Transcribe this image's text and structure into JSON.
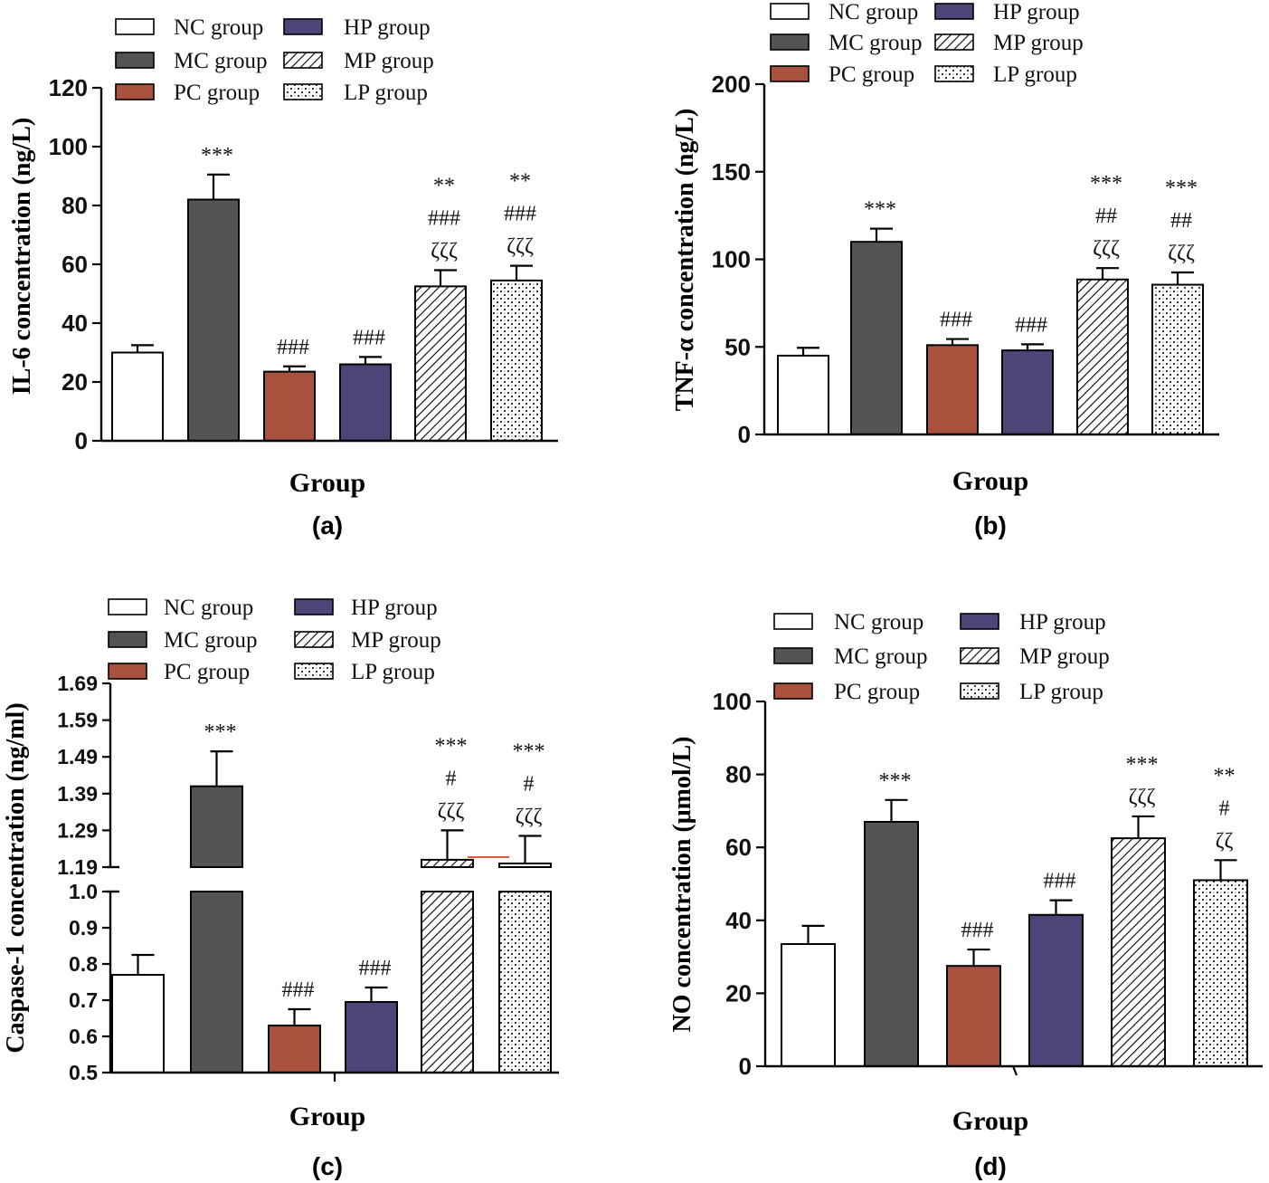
{
  "colors": {
    "NC": "#ffffff",
    "MC": "#545454",
    "PC": "#a8513c",
    "HP": "#4b4677",
    "MP": "#ffffff",
    "LP": "#ffffff",
    "axis": "#000000",
    "break_mark": "#e0573a"
  },
  "legend_labels": [
    "NC group",
    "MC group",
    "PC group",
    "HP group",
    "MP group",
    "LP group"
  ],
  "chart_data": [
    {
      "id": "a",
      "type": "bar",
      "panel_label": "(a)",
      "xlabel": "Group",
      "ylabel": "IL-6 concentration (ng/L)",
      "ylim": [
        0,
        120
      ],
      "yticks": [
        "0",
        "20",
        "40",
        "60",
        "80",
        "100",
        "120"
      ],
      "categories": [
        "NC group",
        "MC group",
        "PC group",
        "HP group",
        "MP group",
        "LP group"
      ],
      "values": [
        30,
        82,
        23.5,
        26,
        52.5,
        54.5
      ],
      "errors": [
        2.5,
        8.5,
        1.8,
        2.5,
        5.5,
        5
      ],
      "annotations": [
        [],
        [
          "***"
        ],
        [
          "###"
        ],
        [
          "###"
        ],
        [
          "**",
          "###",
          "ζζζ"
        ],
        [
          "**",
          "###",
          "ζζζ"
        ]
      ]
    },
    {
      "id": "b",
      "type": "bar",
      "panel_label": "(b)",
      "xlabel": "Group",
      "ylabel": "TNF-α concentration (ng/L)",
      "ylim": [
        0,
        200
      ],
      "yticks": [
        "0",
        "50",
        "100",
        "150",
        "200"
      ],
      "categories": [
        "NC group",
        "MC group",
        "PC group",
        "HP group",
        "MP group",
        "LP group"
      ],
      "values": [
        45,
        110,
        51,
        48,
        88.5,
        85.5
      ],
      "errors": [
        4.5,
        7.5,
        3.5,
        3.5,
        6.5,
        7
      ],
      "annotations": [
        [],
        [
          "***"
        ],
        [
          "###"
        ],
        [
          "###"
        ],
        [
          "***",
          "##",
          "ζζζ"
        ],
        [
          "***",
          "##",
          "ζζζ"
        ]
      ]
    },
    {
      "id": "c",
      "type": "bar",
      "panel_label": "(c)",
      "xlabel": "Group",
      "ylabel": "Caspase-1 concentration (ng/ml)",
      "ylim": [
        0.5,
        1.69
      ],
      "yticks_lower": [
        "0.5",
        "0.6",
        "0.7",
        "0.8",
        "0.9",
        "1.0"
      ],
      "yticks_upper": [
        "1.19",
        "1.29",
        "1.39",
        "1.49",
        "1.59",
        "1.69"
      ],
      "axis_break": [
        1.0,
        1.19
      ],
      "categories": [
        "NC group",
        "MC group",
        "PC group",
        "HP group",
        "MP group",
        "LP group"
      ],
      "values": [
        0.77,
        1.41,
        0.63,
        0.695,
        1.21,
        1.2
      ],
      "errors": [
        0.055,
        0.095,
        0.045,
        0.04,
        0.08,
        0.075
      ],
      "annotations": [
        [],
        [
          "***"
        ],
        [
          "###"
        ],
        [
          "###"
        ],
        [
          "***",
          "#",
          "ζζζ"
        ],
        [
          "***",
          "#",
          "ζζζ"
        ]
      ]
    },
    {
      "id": "d",
      "type": "bar",
      "panel_label": "(d)",
      "xlabel": "Group",
      "ylabel": "NO concentration (μmol/L)",
      "ylim": [
        0,
        100
      ],
      "yticks": [
        "0",
        "20",
        "40",
        "60",
        "80",
        "100"
      ],
      "categories": [
        "NC group",
        "MC group",
        "PC group",
        "HP group",
        "MP group",
        "LP group"
      ],
      "values": [
        33.5,
        67,
        27.5,
        41.5,
        62.5,
        51
      ],
      "errors": [
        5,
        6,
        4.5,
        4,
        6,
        5.5
      ],
      "annotations": [
        [],
        [
          "***"
        ],
        [
          "###"
        ],
        [
          "###"
        ],
        [
          "***",
          "ζζζ"
        ],
        [
          "**",
          "#",
          "ζζ"
        ]
      ]
    }
  ]
}
